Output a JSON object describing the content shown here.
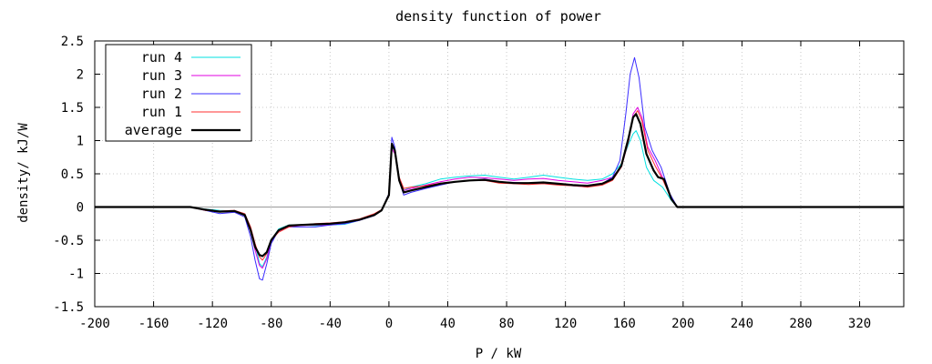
{
  "chart_data": {
    "type": "line",
    "title": "density function of power",
    "xlabel": "P / kW",
    "ylabel": "density/ kJ/W",
    "xlim": [
      -200,
      350
    ],
    "ylim": [
      -1.5,
      2.5
    ],
    "xticks": [
      -200,
      -160,
      -120,
      -80,
      -40,
      0,
      40,
      80,
      120,
      160,
      200,
      240,
      280,
      320
    ],
    "yticks": [
      -1.5,
      -1,
      -0.5,
      0,
      0.5,
      1,
      1.5,
      2,
      2.5
    ],
    "grid": true,
    "legend_position": "top-left",
    "zero_line": true,
    "series": [
      {
        "name": "run 4",
        "color": "#00e0e0",
        "points": [
          [
            -200,
            0
          ],
          [
            -135,
            0
          ],
          [
            -125,
            -0.03
          ],
          [
            -115,
            -0.05
          ],
          [
            -105,
            -0.06
          ],
          [
            -98,
            -0.1
          ],
          [
            -94,
            -0.3
          ],
          [
            -91,
            -0.55
          ],
          [
            -88,
            -0.85
          ],
          [
            -86,
            -0.9
          ],
          [
            -83,
            -0.75
          ],
          [
            -80,
            -0.5
          ],
          [
            -75,
            -0.33
          ],
          [
            -68,
            -0.27
          ],
          [
            -60,
            -0.27
          ],
          [
            -50,
            -0.28
          ],
          [
            -40,
            -0.27
          ],
          [
            -30,
            -0.26
          ],
          [
            -20,
            -0.2
          ],
          [
            -10,
            -0.12
          ],
          [
            -5,
            -0.05
          ],
          [
            0,
            0.2
          ],
          [
            2,
            0.9
          ],
          [
            4,
            0.85
          ],
          [
            7,
            0.45
          ],
          [
            10,
            0.25
          ],
          [
            15,
            0.3
          ],
          [
            25,
            0.35
          ],
          [
            35,
            0.42
          ],
          [
            45,
            0.45
          ],
          [
            55,
            0.47
          ],
          [
            65,
            0.48
          ],
          [
            75,
            0.45
          ],
          [
            85,
            0.42
          ],
          [
            95,
            0.45
          ],
          [
            105,
            0.48
          ],
          [
            115,
            0.45
          ],
          [
            125,
            0.42
          ],
          [
            135,
            0.4
          ],
          [
            145,
            0.42
          ],
          [
            152,
            0.5
          ],
          [
            158,
            0.65
          ],
          [
            163,
            0.95
          ],
          [
            166,
            1.1
          ],
          [
            168,
            1.15
          ],
          [
            171,
            1.0
          ],
          [
            175,
            0.6
          ],
          [
            180,
            0.4
          ],
          [
            186,
            0.3
          ],
          [
            192,
            0.1
          ],
          [
            196,
            0
          ],
          [
            350,
            0
          ]
        ]
      },
      {
        "name": "run 3",
        "color": "#e000e0",
        "points": [
          [
            -200,
            0
          ],
          [
            -135,
            0
          ],
          [
            -125,
            -0.05
          ],
          [
            -115,
            -0.07
          ],
          [
            -105,
            -0.07
          ],
          [
            -98,
            -0.12
          ],
          [
            -94,
            -0.35
          ],
          [
            -91,
            -0.65
          ],
          [
            -88,
            -0.88
          ],
          [
            -86,
            -0.92
          ],
          [
            -83,
            -0.78
          ],
          [
            -80,
            -0.52
          ],
          [
            -75,
            -0.36
          ],
          [
            -68,
            -0.3
          ],
          [
            -60,
            -0.28
          ],
          [
            -50,
            -0.27
          ],
          [
            -40,
            -0.27
          ],
          [
            -30,
            -0.25
          ],
          [
            -20,
            -0.2
          ],
          [
            -10,
            -0.12
          ],
          [
            -5,
            -0.05
          ],
          [
            0,
            0.2
          ],
          [
            2,
            0.88
          ],
          [
            4,
            0.8
          ],
          [
            7,
            0.42
          ],
          [
            10,
            0.25
          ],
          [
            15,
            0.28
          ],
          [
            25,
            0.33
          ],
          [
            35,
            0.38
          ],
          [
            45,
            0.42
          ],
          [
            55,
            0.45
          ],
          [
            65,
            0.44
          ],
          [
            75,
            0.42
          ],
          [
            85,
            0.4
          ],
          [
            95,
            0.42
          ],
          [
            105,
            0.43
          ],
          [
            115,
            0.4
          ],
          [
            125,
            0.38
          ],
          [
            135,
            0.36
          ],
          [
            145,
            0.4
          ],
          [
            152,
            0.45
          ],
          [
            158,
            0.6
          ],
          [
            163,
            1.0
          ],
          [
            166,
            1.4
          ],
          [
            169,
            1.5
          ],
          [
            172,
            1.35
          ],
          [
            176,
            0.9
          ],
          [
            181,
            0.7
          ],
          [
            186,
            0.45
          ],
          [
            192,
            0.15
          ],
          [
            196,
            0
          ],
          [
            350,
            0
          ]
        ]
      },
      {
        "name": "run 2",
        "color": "#3a2cff",
        "points": [
          [
            -200,
            0
          ],
          [
            -135,
            0
          ],
          [
            -125,
            -0.05
          ],
          [
            -115,
            -0.1
          ],
          [
            -105,
            -0.08
          ],
          [
            -98,
            -0.15
          ],
          [
            -94,
            -0.45
          ],
          [
            -91,
            -0.8
          ],
          [
            -88,
            -1.08
          ],
          [
            -86,
            -1.1
          ],
          [
            -83,
            -0.85
          ],
          [
            -80,
            -0.55
          ],
          [
            -75,
            -0.35
          ],
          [
            -68,
            -0.3
          ],
          [
            -60,
            -0.3
          ],
          [
            -50,
            -0.3
          ],
          [
            -40,
            -0.27
          ],
          [
            -30,
            -0.25
          ],
          [
            -20,
            -0.2
          ],
          [
            -10,
            -0.13
          ],
          [
            -5,
            -0.05
          ],
          [
            0,
            0.2
          ],
          [
            2,
            1.05
          ],
          [
            4,
            0.9
          ],
          [
            7,
            0.4
          ],
          [
            10,
            0.18
          ],
          [
            15,
            0.22
          ],
          [
            25,
            0.28
          ],
          [
            35,
            0.33
          ],
          [
            45,
            0.38
          ],
          [
            55,
            0.4
          ],
          [
            65,
            0.42
          ],
          [
            75,
            0.38
          ],
          [
            85,
            0.37
          ],
          [
            95,
            0.36
          ],
          [
            105,
            0.35
          ],
          [
            115,
            0.34
          ],
          [
            125,
            0.32
          ],
          [
            135,
            0.3
          ],
          [
            145,
            0.35
          ],
          [
            152,
            0.45
          ],
          [
            157,
            0.7
          ],
          [
            161,
            1.4
          ],
          [
            164,
            2.0
          ],
          [
            167,
            2.25
          ],
          [
            170,
            1.95
          ],
          [
            174,
            1.2
          ],
          [
            179,
            0.85
          ],
          [
            185,
            0.6
          ],
          [
            191,
            0.2
          ],
          [
            196,
            0
          ],
          [
            350,
            0
          ]
        ]
      },
      {
        "name": "run 1",
        "color": "#ff3030",
        "points": [
          [
            -200,
            0
          ],
          [
            -135,
            0
          ],
          [
            -125,
            -0.05
          ],
          [
            -115,
            -0.06
          ],
          [
            -105,
            -0.05
          ],
          [
            -98,
            -0.1
          ],
          [
            -94,
            -0.3
          ],
          [
            -91,
            -0.55
          ],
          [
            -88,
            -0.75
          ],
          [
            -86,
            -0.8
          ],
          [
            -83,
            -0.7
          ],
          [
            -80,
            -0.5
          ],
          [
            -75,
            -0.38
          ],
          [
            -68,
            -0.3
          ],
          [
            -60,
            -0.27
          ],
          [
            -50,
            -0.25
          ],
          [
            -40,
            -0.24
          ],
          [
            -30,
            -0.22
          ],
          [
            -20,
            -0.18
          ],
          [
            -10,
            -0.1
          ],
          [
            -5,
            -0.04
          ],
          [
            0,
            0.18
          ],
          [
            2,
            0.95
          ],
          [
            4,
            0.85
          ],
          [
            7,
            0.45
          ],
          [
            10,
            0.28
          ],
          [
            15,
            0.3
          ],
          [
            25,
            0.32
          ],
          [
            35,
            0.36
          ],
          [
            45,
            0.38
          ],
          [
            55,
            0.4
          ],
          [
            65,
            0.4
          ],
          [
            75,
            0.36
          ],
          [
            85,
            0.35
          ],
          [
            95,
            0.34
          ],
          [
            105,
            0.35
          ],
          [
            115,
            0.33
          ],
          [
            125,
            0.32
          ],
          [
            135,
            0.3
          ],
          [
            145,
            0.33
          ],
          [
            152,
            0.4
          ],
          [
            158,
            0.6
          ],
          [
            163,
            1.0
          ],
          [
            166,
            1.35
          ],
          [
            169,
            1.45
          ],
          [
            172,
            1.3
          ],
          [
            176,
            0.85
          ],
          [
            181,
            0.62
          ],
          [
            186,
            0.42
          ],
          [
            192,
            0.12
          ],
          [
            196,
            0
          ],
          [
            350,
            0
          ]
        ]
      },
      {
        "name": "average",
        "color": "#000000",
        "points": [
          [
            -200,
            0
          ],
          [
            -135,
            0
          ],
          [
            -125,
            -0.04
          ],
          [
            -115,
            -0.07
          ],
          [
            -105,
            -0.06
          ],
          [
            -98,
            -0.12
          ],
          [
            -94,
            -0.35
          ],
          [
            -91,
            -0.6
          ],
          [
            -88,
            -0.72
          ],
          [
            -86,
            -0.74
          ],
          [
            -83,
            -0.68
          ],
          [
            -80,
            -0.5
          ],
          [
            -75,
            -0.35
          ],
          [
            -68,
            -0.28
          ],
          [
            -60,
            -0.27
          ],
          [
            -50,
            -0.26
          ],
          [
            -40,
            -0.25
          ],
          [
            -30,
            -0.23
          ],
          [
            -20,
            -0.19
          ],
          [
            -10,
            -0.12
          ],
          [
            -5,
            -0.05
          ],
          [
            0,
            0.18
          ],
          [
            2,
            0.95
          ],
          [
            4,
            0.85
          ],
          [
            7,
            0.4
          ],
          [
            10,
            0.22
          ],
          [
            15,
            0.25
          ],
          [
            25,
            0.3
          ],
          [
            35,
            0.35
          ],
          [
            45,
            0.38
          ],
          [
            55,
            0.4
          ],
          [
            65,
            0.41
          ],
          [
            75,
            0.38
          ],
          [
            85,
            0.36
          ],
          [
            95,
            0.36
          ],
          [
            105,
            0.37
          ],
          [
            115,
            0.35
          ],
          [
            125,
            0.33
          ],
          [
            135,
            0.32
          ],
          [
            145,
            0.35
          ],
          [
            152,
            0.42
          ],
          [
            158,
            0.62
          ],
          [
            163,
            1.05
          ],
          [
            166,
            1.35
          ],
          [
            168,
            1.4
          ],
          [
            171,
            1.25
          ],
          [
            175,
            0.8
          ],
          [
            180,
            0.55
          ],
          [
            183,
            0.45
          ],
          [
            187,
            0.42
          ],
          [
            192,
            0.12
          ],
          [
            196,
            0
          ],
          [
            350,
            0
          ]
        ]
      }
    ]
  }
}
